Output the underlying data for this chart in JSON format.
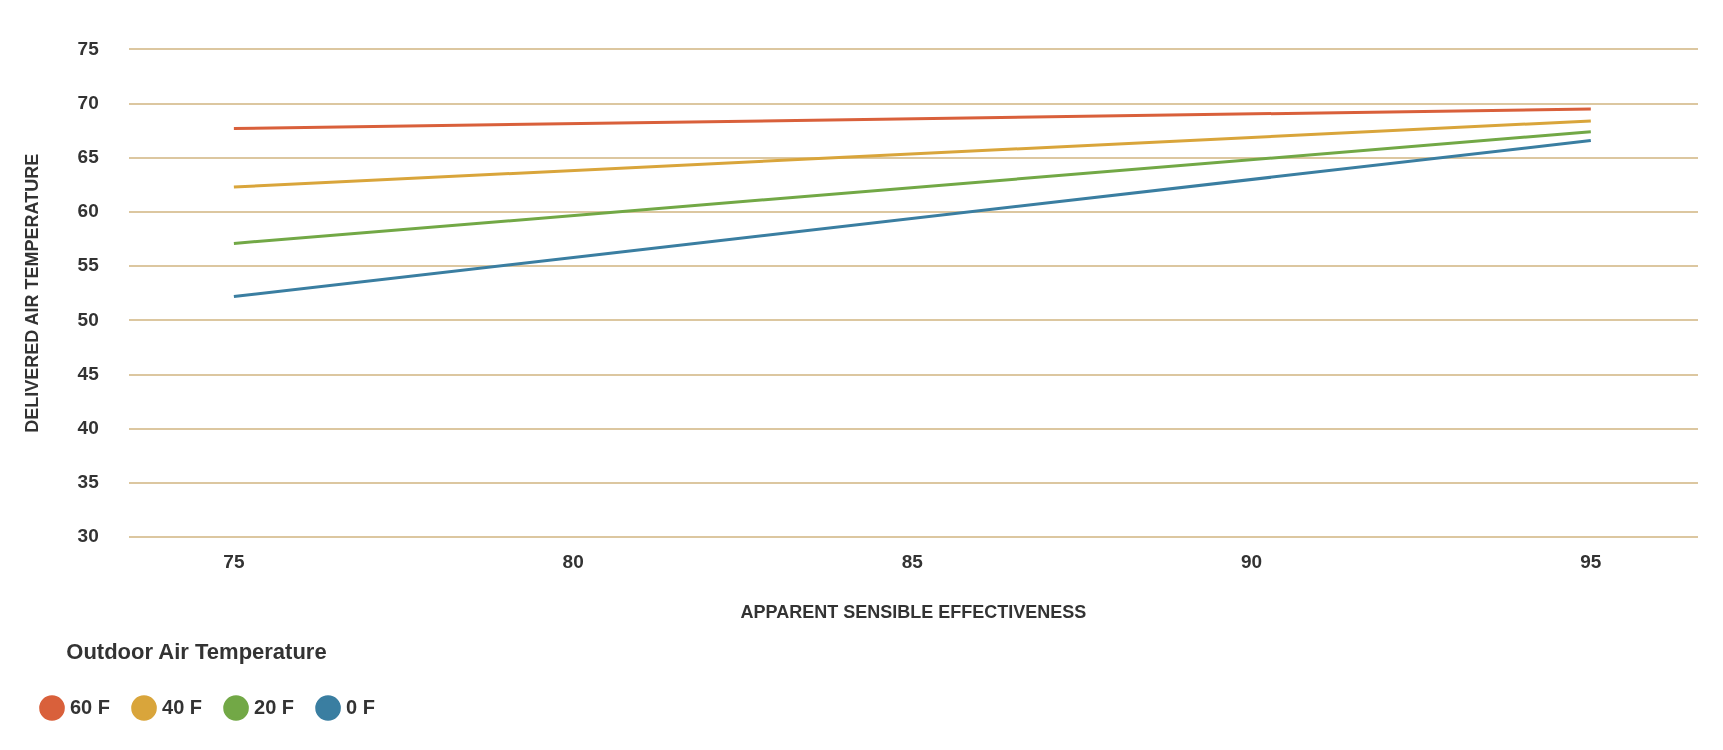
{
  "chart_data": {
    "type": "line",
    "xlabel": "APPARENT SENSIBLE EFFECTIVENESS",
    "ylabel": "DELIVERED AIR TEMPERATURE",
    "legend_title": "Outdoor Air Temperature",
    "x": [
      75,
      95
    ],
    "series": [
      {
        "name": "60 F",
        "color": "#d9603b",
        "values": [
          67.7,
          69.5
        ]
      },
      {
        "name": "40 F",
        "color": "#d9a53b",
        "values": [
          62.3,
          68.4
        ]
      },
      {
        "name": "20 F",
        "color": "#72a846",
        "values": [
          57.1,
          67.4
        ]
      },
      {
        "name": "0 F",
        "color": "#3a7ea1",
        "values": [
          52.2,
          66.6
        ]
      }
    ],
    "xlim": [
      73.45,
      96.58
    ],
    "xticks": [
      75,
      80,
      85,
      90,
      95
    ],
    "ylim": [
      30,
      75
    ],
    "yticks": [
      30,
      35,
      40,
      45,
      50,
      55,
      60,
      65,
      70,
      75
    ],
    "grid": "y",
    "legend": "bottom left",
    "marker": "none",
    "line_style": "solid"
  }
}
